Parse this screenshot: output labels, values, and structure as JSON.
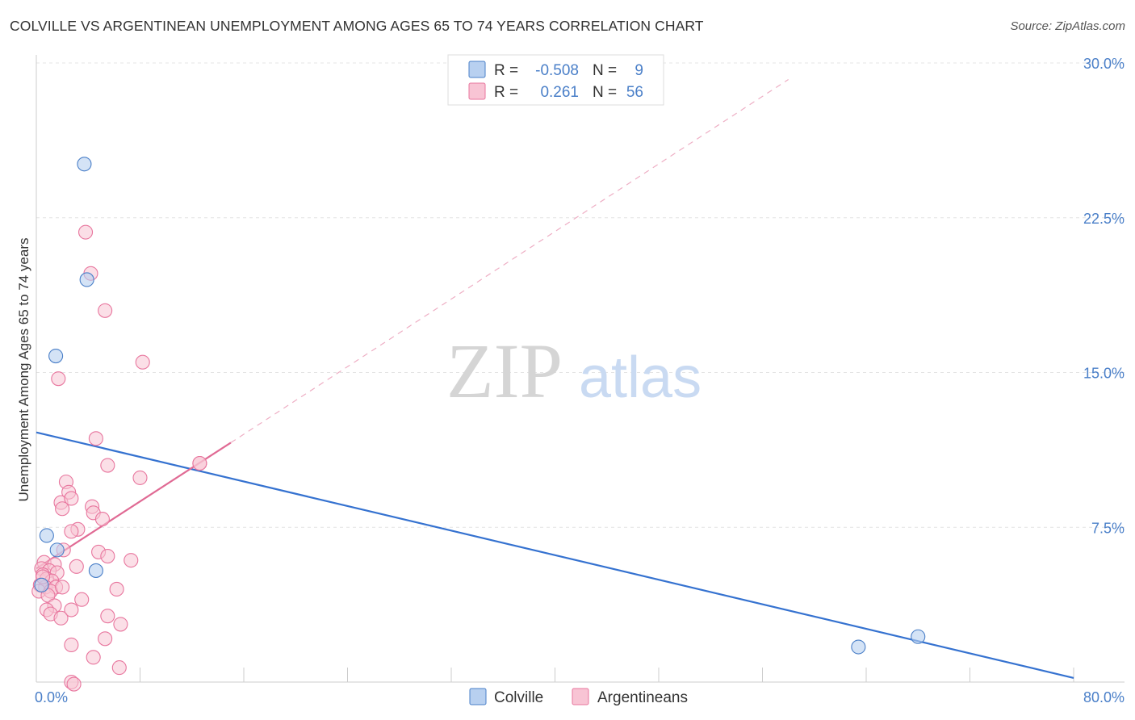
{
  "header": {
    "title": "COLVILLE VS ARGENTINEAN UNEMPLOYMENT AMONG AGES 65 TO 74 YEARS CORRELATION CHART",
    "source": "Source: ZipAtlas.com"
  },
  "watermark": {
    "zip": "ZIP",
    "atlas": "atlas"
  },
  "colors": {
    "blue": "#4a7fc8",
    "blue_fill": "#b8d0f0",
    "blue_line": "#3572d0",
    "pink": "#e8769e",
    "pink_fill": "#f8c4d4",
    "pink_line": "#e06a94",
    "grid": "#e4e4e4",
    "axis": "#cccccc"
  },
  "stats": {
    "r_label": "R =",
    "n_label": "N =",
    "colville": {
      "r": "-0.508",
      "n": "9"
    },
    "argentineans": {
      "r": "0.261",
      "n": "56"
    }
  },
  "chart_data": {
    "type": "scatter",
    "title": "COLVILLE VS ARGENTINEAN UNEMPLOYMENT AMONG AGES 65 TO 74 YEARS CORRELATION CHART",
    "xlabel": "",
    "ylabel": "Unemployment Among Ages 65 to 74 years",
    "xlim": [
      0,
      80
    ],
    "ylim": [
      0,
      30
    ],
    "x_tick_labels": {
      "min": "0.0%",
      "max": "80.0%"
    },
    "x_ticks": [
      0,
      8,
      16,
      24,
      32,
      40,
      48,
      56,
      64,
      72,
      80
    ],
    "y_ticks": [
      {
        "value": 7.5,
        "label": "7.5%"
      },
      {
        "value": 15.0,
        "label": "15.0%"
      },
      {
        "value": 22.5,
        "label": "22.5%"
      },
      {
        "value": 30.0,
        "label": "30.0%"
      }
    ],
    "legend": [
      "Colville",
      "Argentineans"
    ],
    "series": [
      {
        "name": "Colville",
        "points": [
          [
            3.7,
            25.1
          ],
          [
            3.9,
            19.5
          ],
          [
            1.5,
            15.8
          ],
          [
            0.8,
            7.1
          ],
          [
            1.6,
            6.4
          ],
          [
            4.6,
            5.4
          ],
          [
            63.4,
            1.7
          ],
          [
            68.0,
            2.2
          ],
          [
            0.4,
            4.7
          ]
        ],
        "trend": {
          "x0": 0,
          "y0": 12.1,
          "x1": 80,
          "y1": 0.2,
          "style": "solid"
        }
      },
      {
        "name": "Argentineans",
        "points": [
          [
            3.8,
            21.8
          ],
          [
            4.2,
            19.8
          ],
          [
            5.3,
            18.0
          ],
          [
            8.2,
            15.5
          ],
          [
            1.7,
            14.7
          ],
          [
            4.6,
            11.8
          ],
          [
            12.6,
            10.6
          ],
          [
            5.5,
            10.5
          ],
          [
            8.0,
            9.9
          ],
          [
            2.3,
            9.7
          ],
          [
            2.5,
            9.2
          ],
          [
            1.9,
            8.7
          ],
          [
            2.7,
            8.9
          ],
          [
            4.3,
            8.5
          ],
          [
            2.0,
            8.4
          ],
          [
            4.4,
            8.2
          ],
          [
            5.1,
            7.9
          ],
          [
            3.2,
            7.4
          ],
          [
            2.7,
            7.3
          ],
          [
            2.1,
            6.4
          ],
          [
            4.8,
            6.3
          ],
          [
            5.5,
            6.1
          ],
          [
            7.3,
            5.9
          ],
          [
            3.1,
            5.6
          ],
          [
            0.6,
            5.8
          ],
          [
            1.4,
            5.7
          ],
          [
            0.4,
            5.5
          ],
          [
            1.0,
            5.4
          ],
          [
            0.5,
            5.2
          ],
          [
            1.6,
            5.3
          ],
          [
            0.8,
            5.0
          ],
          [
            1.2,
            4.9
          ],
          [
            0.3,
            4.7
          ],
          [
            0.7,
            4.6
          ],
          [
            1.5,
            4.6
          ],
          [
            0.2,
            4.4
          ],
          [
            1.1,
            4.4
          ],
          [
            2.0,
            4.6
          ],
          [
            0.9,
            4.2
          ],
          [
            6.2,
            4.5
          ],
          [
            3.5,
            4.0
          ],
          [
            1.4,
            3.7
          ],
          [
            0.8,
            3.5
          ],
          [
            2.7,
            3.5
          ],
          [
            1.1,
            3.3
          ],
          [
            5.5,
            3.2
          ],
          [
            6.5,
            2.8
          ],
          [
            1.9,
            3.1
          ],
          [
            5.3,
            2.1
          ],
          [
            2.7,
            1.8
          ],
          [
            4.4,
            1.2
          ],
          [
            6.4,
            0.7
          ],
          [
            2.7,
            0.0
          ],
          [
            2.9,
            -0.1
          ],
          [
            12.6,
            10.6
          ],
          [
            0.5,
            5.1
          ]
        ],
        "trend": {
          "x0": 0,
          "y0": 5.5,
          "x1": 15,
          "y1": 11.6,
          "style": "solid"
        },
        "trend_extension": {
          "x0": 15,
          "y0": 11.6,
          "x1": 58,
          "y1": 29.2,
          "style": "dashed"
        }
      }
    ]
  }
}
